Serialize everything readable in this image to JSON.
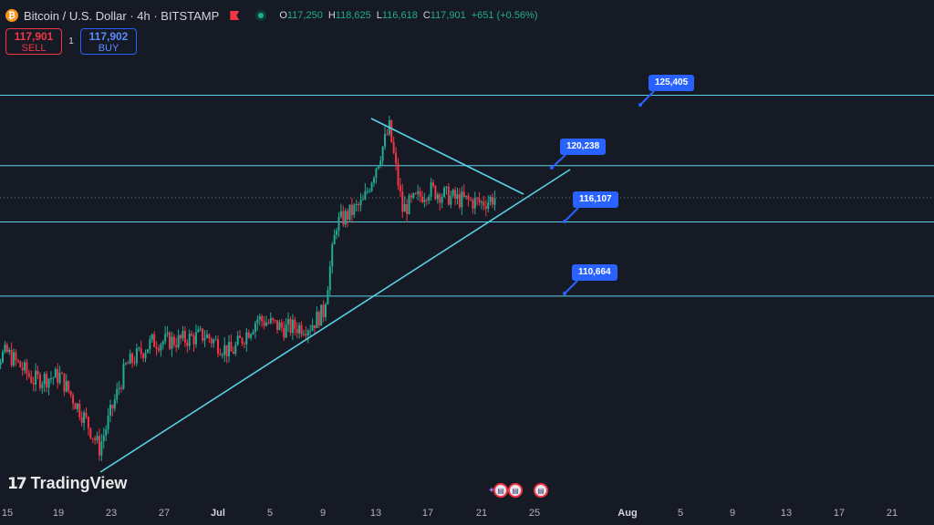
{
  "header": {
    "title": "Bitcoin / U.S. Dollar · 4h · BITSTAMP",
    "logo_letter": "₿",
    "ohlc": {
      "open_label": "O",
      "open": "117,250",
      "high_label": "H",
      "high": "118,625",
      "low_label": "L",
      "low": "116,618",
      "close_label": "C",
      "close": "117,901",
      "change": "+651 (+0.56%)"
    }
  },
  "trade": {
    "sell_price": "117,901",
    "sell_label": "SELL",
    "spread": "1",
    "buy_price": "117,902",
    "buy_label": "BUY"
  },
  "price_labels": [
    "125,405",
    "120,238",
    "116,107",
    "110,664"
  ],
  "watermark": "TradingView",
  "x_axis": {
    "ticks": [
      "15",
      "19",
      "23",
      "27",
      "Jul",
      "5",
      "9",
      "13",
      "17",
      "21",
      "25",
      "Aug",
      "5",
      "9",
      "13",
      "17",
      "21"
    ]
  },
  "colors": {
    "background": "#161a25",
    "up": "#22ab94",
    "down": "#f23645",
    "line": "#5ad0e6",
    "label": "#2962ff"
  },
  "chart_data": {
    "type": "candlestick",
    "symbol": "BTCUSD",
    "timeframe": "4h",
    "horizontal_levels": [
      125405,
      120238,
      116107,
      110664
    ],
    "trendlines": [
      "ascending support",
      "descending resistance"
    ],
    "approx_close_path": [
      {
        "date": "Jun 13",
        "price": 105500
      },
      {
        "date": "Jun 15",
        "price": 106500
      },
      {
        "date": "Jun 17",
        "price": 104500
      },
      {
        "date": "Jun 19",
        "price": 104800
      },
      {
        "date": "Jun 21",
        "price": 101500
      },
      {
        "date": "Jun 22",
        "price": 99500
      },
      {
        "date": "Jun 24",
        "price": 105500
      },
      {
        "date": "Jun 26",
        "price": 107300
      },
      {
        "date": "Jun 28",
        "price": 107400
      },
      {
        "date": "Jun 30",
        "price": 107800
      },
      {
        "date": "Jul 2",
        "price": 106500
      },
      {
        "date": "Jul 4",
        "price": 109000
      },
      {
        "date": "Jul 6",
        "price": 108300
      },
      {
        "date": "Jul 8",
        "price": 108500
      },
      {
        "date": "Jul 9",
        "price": 109500
      },
      {
        "date": "Jul 10",
        "price": 116000
      },
      {
        "date": "Jul 12",
        "price": 117500
      },
      {
        "date": "Jul 14",
        "price": 123000
      },
      {
        "date": "Jul 15",
        "price": 117000
      },
      {
        "date": "Jul 17",
        "price": 118500
      },
      {
        "date": "Jul 19",
        "price": 117800
      },
      {
        "date": "Jul 21",
        "price": 117500
      },
      {
        "date": "Jul 22",
        "price": 117901
      }
    ]
  }
}
